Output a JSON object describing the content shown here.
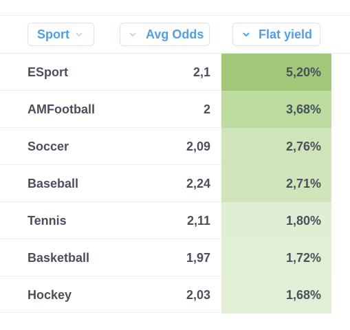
{
  "header": {
    "columns": [
      {
        "label": "Sport",
        "icon": "chevron-down-icon"
      },
      {
        "label": "Avg Odds",
        "icon": "chevron-down-icon"
      },
      {
        "label": "Flat yield",
        "icon": "chevron-down-icon"
      }
    ],
    "accent_color": "#509ee3"
  },
  "rows": [
    {
      "sport": "ESport",
      "avg_odds": "2,1",
      "flat_yield": "5,20%",
      "heat_color": "#a0c878"
    },
    {
      "sport": "AMFootball",
      "avg_odds": "2",
      "flat_yield": "3,68%",
      "heat_color": "#bdda9f"
    },
    {
      "sport": "Soccer",
      "avg_odds": "2,09",
      "flat_yield": "2,76%",
      "heat_color": "#cfe5b9"
    },
    {
      "sport": "Baseball",
      "avg_odds": "2,24",
      "flat_yield": "2,71%",
      "heat_color": "#d0e5ba"
    },
    {
      "sport": "Tennis",
      "avg_odds": "2,11",
      "flat_yield": "1,80%",
      "heat_color": "#e0eed3"
    },
    {
      "sport": "Basketball",
      "avg_odds": "1,97",
      "flat_yield": "1,72%",
      "heat_color": "#e1efd5"
    },
    {
      "sport": "Hockey",
      "avg_odds": "2,03",
      "flat_yield": "1,68%",
      "heat_color": "#e2efd6"
    }
  ]
}
